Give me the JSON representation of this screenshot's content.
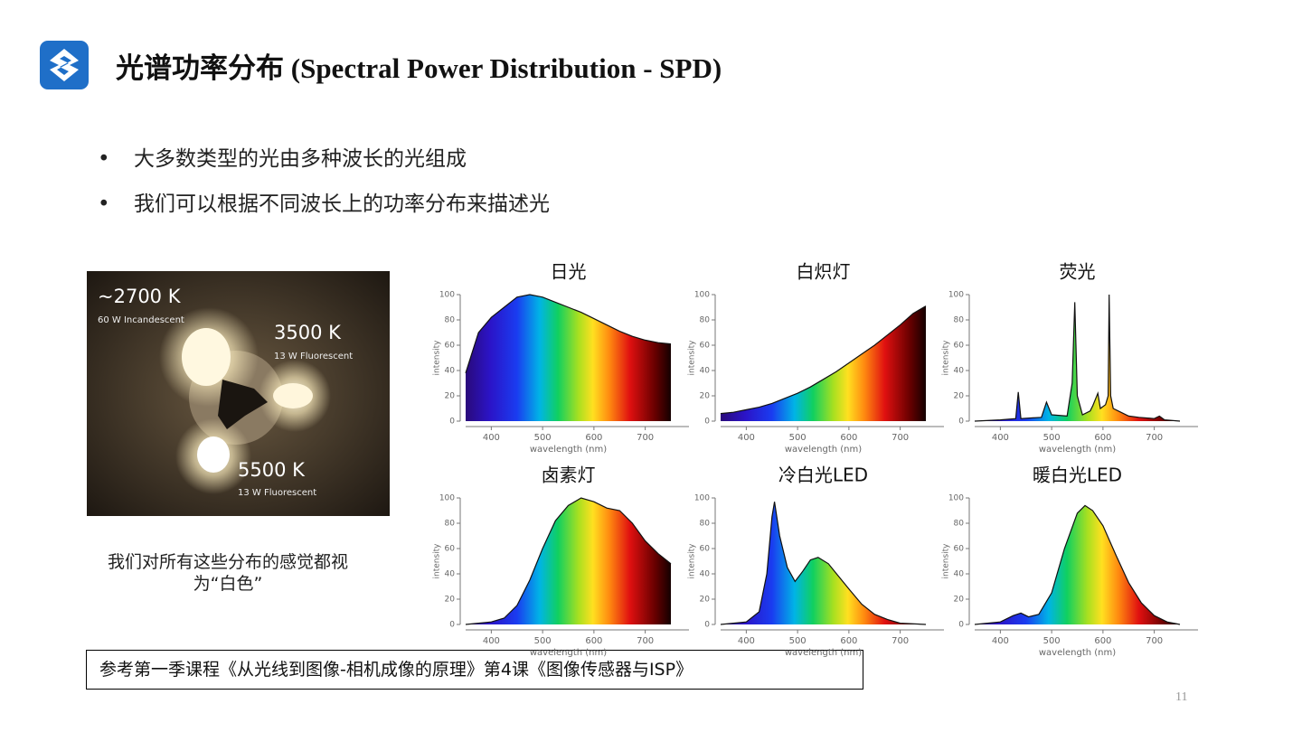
{
  "header": {
    "title": "光谱功率分布 (Spectral Power Distribution - SPD)"
  },
  "bullets": [
    "大多数类型的光由多种波长的光组成",
    "我们可以根据不同波长上的功率分布来描述光"
  ],
  "photo": {
    "labels": [
      {
        "temp": "~2700 K",
        "desc": "60 W Incandescent"
      },
      {
        "temp": "3500 K",
        "desc": "13 W Fluorescent"
      },
      {
        "temp": "5500 K",
        "desc": "13 W Fluorescent"
      }
    ]
  },
  "caption": "我们对所有这些分布的感觉都视为“白色”",
  "reference": "参考第一季课程《从光线到图像-相机成像的原理》第4课《图像传感器与ISP》",
  "page_number": "11",
  "chart_data": [
    {
      "type": "area",
      "fill": "spectrum",
      "title": "日光",
      "xlabel": "wavelength (nm)",
      "ylabel": "intensity",
      "x": [
        350,
        375,
        400,
        425,
        450,
        475,
        500,
        525,
        550,
        575,
        600,
        625,
        650,
        675,
        700,
        725,
        750
      ],
      "values": [
        38,
        70,
        82,
        90,
        98,
        100,
        98,
        94,
        90,
        86,
        81,
        76,
        71,
        67,
        64,
        62,
        61
      ],
      "xlim": [
        350,
        750
      ],
      "ylim": [
        0,
        100
      ],
      "xticks": [
        400,
        500,
        600,
        700
      ],
      "yticks": [
        0,
        20,
        40,
        60,
        80,
        100
      ]
    },
    {
      "type": "area",
      "fill": "spectrum",
      "title": "白炽灯",
      "xlabel": "wavelength (nm)",
      "ylabel": "intensity",
      "x": [
        350,
        375,
        400,
        425,
        450,
        475,
        500,
        525,
        550,
        575,
        600,
        625,
        650,
        675,
        700,
        725,
        750
      ],
      "values": [
        6,
        7,
        9,
        11,
        14,
        18,
        22,
        27,
        33,
        39,
        46,
        53,
        60,
        68,
        76,
        85,
        91
      ],
      "xlim": [
        350,
        750
      ],
      "ylim": [
        0,
        100
      ],
      "xticks": [
        400,
        500,
        600,
        700
      ],
      "yticks": [
        0,
        20,
        40,
        60,
        80,
        100
      ]
    },
    {
      "type": "area",
      "fill": "spectrum",
      "title": "荧光",
      "xlabel": "wavelength (nm)",
      "ylabel": "intensity",
      "x": [
        350,
        400,
        430,
        435,
        440,
        480,
        490,
        500,
        530,
        540,
        545,
        550,
        560,
        575,
        580,
        590,
        595,
        605,
        610,
        612,
        615,
        620,
        630,
        650,
        670,
        700,
        710,
        720,
        750
      ],
      "values": [
        0,
        1,
        2,
        23,
        2,
        3,
        15,
        5,
        4,
        30,
        94,
        20,
        5,
        8,
        12,
        22,
        10,
        13,
        20,
        100,
        20,
        10,
        8,
        4,
        3,
        2,
        4,
        1,
        0
      ],
      "xlim": [
        350,
        750
      ],
      "ylim": [
        0,
        100
      ],
      "xticks": [
        400,
        500,
        600,
        700
      ],
      "yticks": [
        0,
        20,
        40,
        60,
        80,
        100
      ]
    },
    {
      "type": "area",
      "fill": "spectrum",
      "title": "卤素灯",
      "xlabel": "wavelength (nm)",
      "ylabel": "intensity",
      "x": [
        350,
        400,
        425,
        450,
        475,
        500,
        525,
        550,
        575,
        600,
        625,
        650,
        675,
        700,
        725,
        750
      ],
      "values": [
        0,
        2,
        5,
        15,
        35,
        60,
        82,
        94,
        100,
        97,
        92,
        90,
        80,
        66,
        56,
        48
      ],
      "xlim": [
        350,
        750
      ],
      "ylim": [
        0,
        100
      ],
      "xticks": [
        400,
        500,
        600,
        700
      ],
      "yticks": [
        0,
        20,
        40,
        60,
        80,
        100
      ]
    },
    {
      "type": "area",
      "fill": "spectrum",
      "title": "冷白光LED",
      "xlabel": "wavelength (nm)",
      "ylabel": "intensity",
      "x": [
        350,
        400,
        425,
        440,
        450,
        455,
        465,
        480,
        495,
        510,
        525,
        540,
        560,
        580,
        600,
        625,
        650,
        675,
        700,
        750
      ],
      "values": [
        0,
        2,
        10,
        40,
        85,
        97,
        70,
        45,
        34,
        42,
        51,
        53,
        48,
        38,
        28,
        16,
        8,
        4,
        1,
        0
      ],
      "xlim": [
        350,
        750
      ],
      "ylim": [
        0,
        100
      ],
      "xticks": [
        400,
        500,
        600,
        700
      ],
      "yticks": [
        0,
        20,
        40,
        60,
        80,
        100
      ]
    },
    {
      "type": "area",
      "fill": "spectrum",
      "title": "暖白光LED",
      "xlabel": "wavelength (nm)",
      "ylabel": "intensity",
      "x": [
        350,
        400,
        425,
        440,
        455,
        475,
        500,
        525,
        550,
        565,
        580,
        600,
        625,
        650,
        675,
        700,
        725,
        750
      ],
      "values": [
        0,
        2,
        7,
        9,
        6,
        8,
        25,
        60,
        88,
        94,
        90,
        78,
        55,
        33,
        17,
        7,
        2,
        0
      ],
      "xlim": [
        350,
        750
      ],
      "ylim": [
        0,
        100
      ],
      "xticks": [
        400,
        500,
        600,
        700
      ],
      "yticks": [
        0,
        20,
        40,
        60,
        80,
        100
      ]
    }
  ]
}
